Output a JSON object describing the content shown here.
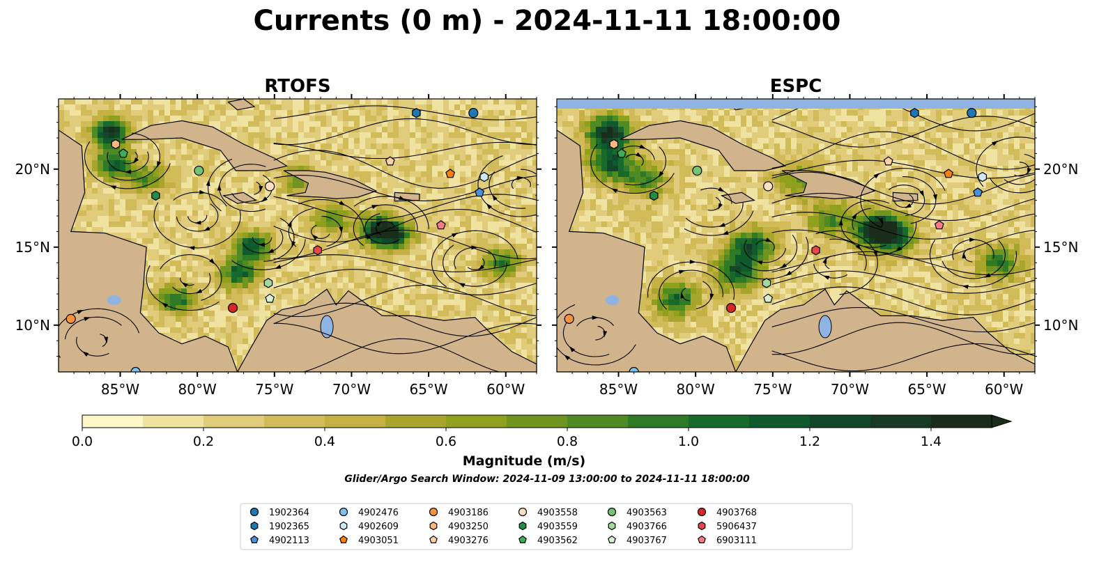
{
  "figure": {
    "title": "Currents (0 m) - 2024-11-11 18:00:00",
    "search_window": "Glider/Argo Search Window: 2024-11-09 13:00:00 to 2024-11-11 18:00:00"
  },
  "chart_data": {
    "type": "heatmap",
    "variable": "ocean current magnitude with streamlines",
    "panels": [
      {
        "title": "RTOFS",
        "top_band": false
      },
      {
        "title": "ESPC",
        "top_band": true
      }
    ],
    "lon_range": [
      -89,
      -58
    ],
    "lat_range": [
      7,
      24.5
    ],
    "x_ticks": [
      {
        "value": -85,
        "label": "85°W"
      },
      {
        "value": -80,
        "label": "80°W"
      },
      {
        "value": -75,
        "label": "75°W"
      },
      {
        "value": -70,
        "label": "70°W"
      },
      {
        "value": -65,
        "label": "65°W"
      },
      {
        "value": -60,
        "label": "60°W"
      }
    ],
    "y_ticks": [
      {
        "value": 20,
        "label": "20°N"
      },
      {
        "value": 15,
        "label": "15°N"
      },
      {
        "value": 10,
        "label": "10°N"
      }
    ],
    "colorbar": {
      "label": "Magnitude (m/s)",
      "range": [
        0,
        1.5
      ],
      "extend": "max",
      "ticks": [
        {
          "value": 0.0,
          "label": "0.0"
        },
        {
          "value": 0.2,
          "label": "0.2"
        },
        {
          "value": 0.4,
          "label": "0.4"
        },
        {
          "value": 0.6,
          "label": "0.6"
        },
        {
          "value": 0.8,
          "label": "0.8"
        },
        {
          "value": 1.0,
          "label": "1.0"
        },
        {
          "value": 1.2,
          "label": "1.2"
        },
        {
          "value": 1.4,
          "label": "1.4"
        }
      ],
      "colors": [
        "#fdf6c8",
        "#f0e2a0",
        "#e0cc7a",
        "#d2bc5a",
        "#c4b043",
        "#a8a52c",
        "#8fa01d",
        "#6f9420",
        "#4f8a22",
        "#2f7a26",
        "#176a2c",
        "#0f5a2d",
        "#12472a",
        "#183a24",
        "#1a2c1a"
      ]
    },
    "land_color": "#d2b48c",
    "water_color": "#8fb4e3",
    "floats": [
      {
        "id": "1902364",
        "color": "#1f77b4",
        "marker": "circle",
        "lon": -62.1,
        "lat": 23.6
      },
      {
        "id": "1902365",
        "color": "#1f77b4",
        "marker": "hexagon",
        "lon": -65.8,
        "lat": 23.6
      },
      {
        "id": "4902113",
        "color": "#4a90d9",
        "marker": "pentagon",
        "lon": -61.7,
        "lat": 18.5
      },
      {
        "id": "4902476",
        "color": "#7ec1ec",
        "marker": "circle",
        "lon": -84.0,
        "lat": 7.0
      },
      {
        "id": "4902609",
        "color": "#cfe8f7",
        "marker": "hexagon",
        "lon": -61.4,
        "lat": 19.5
      },
      {
        "id": "4903051",
        "color": "#ff7f0e",
        "marker": "pentagon",
        "lon": -63.6,
        "lat": 19.7
      },
      {
        "id": "4903186",
        "color": "#f5923e",
        "marker": "circle",
        "lon": -88.2,
        "lat": 10.4
      },
      {
        "id": "4903250",
        "color": "#fdb97d",
        "marker": "hexagon",
        "lon": -85.3,
        "lat": 21.6
      },
      {
        "id": "4903276",
        "color": "#fdd0a2",
        "marker": "pentagon",
        "lon": -67.5,
        "lat": 20.5
      },
      {
        "id": "4903558",
        "color": "#fde0c2",
        "marker": "circle",
        "lon": -75.3,
        "lat": 18.9
      },
      {
        "id": "4903559",
        "color": "#238b45",
        "marker": "hexagon",
        "lon": -82.7,
        "lat": 18.3
      },
      {
        "id": "4903562",
        "color": "#41ab5d",
        "marker": "pentagon",
        "lon": -84.8,
        "lat": 21.0
      },
      {
        "id": "4903563",
        "color": "#74c476",
        "marker": "circle",
        "lon": -79.9,
        "lat": 19.9
      },
      {
        "id": "4903766",
        "color": "#a1d99b",
        "marker": "hexagon",
        "lon": -75.4,
        "lat": 12.7
      },
      {
        "id": "4903767",
        "color": "#d9f0d3",
        "marker": "pentagon",
        "lon": -75.3,
        "lat": 11.7
      },
      {
        "id": "4903768",
        "color": "#d62728",
        "marker": "circle",
        "lon": -77.7,
        "lat": 11.1
      },
      {
        "id": "5906437",
        "color": "#e5484a",
        "marker": "hexagon",
        "lon": -72.2,
        "lat": 14.8
      },
      {
        "id": "6903111",
        "color": "#f77a85",
        "marker": "pentagon",
        "lon": -64.2,
        "lat": 16.4
      }
    ]
  }
}
